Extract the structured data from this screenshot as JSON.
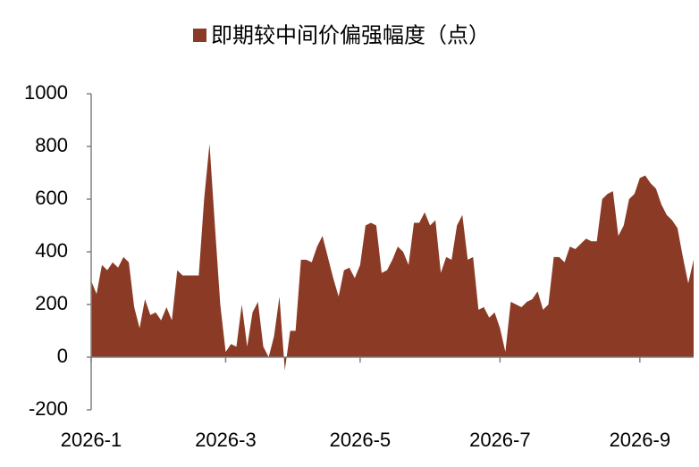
{
  "chart_data": {
    "type": "area",
    "categories": [
      "2026-1",
      null,
      null,
      null,
      null,
      null,
      null,
      null,
      null,
      null,
      null,
      null,
      null,
      null,
      null,
      null,
      null,
      null,
      null,
      null,
      null,
      null,
      null,
      null,
      null,
      "2026-3",
      null,
      null,
      null,
      null,
      null,
      null,
      null,
      null,
      null,
      null,
      null,
      null,
      null,
      null,
      null,
      null,
      null,
      null,
      null,
      null,
      null,
      null,
      null,
      null,
      "2026-5",
      null,
      null,
      null,
      null,
      null,
      null,
      null,
      null,
      null,
      null,
      null,
      null,
      null,
      null,
      null,
      null,
      null,
      null,
      null,
      null,
      null,
      null,
      null,
      null,
      null,
      "2026-7",
      null,
      null,
      null,
      null,
      null,
      null,
      null,
      null,
      null,
      null,
      null,
      null,
      null,
      null,
      null,
      null,
      null,
      null,
      null,
      null,
      null,
      null,
      null,
      null,
      null,
      "2026-9",
      null,
      null,
      null,
      null,
      null,
      null,
      null,
      null,
      null,
      null
    ],
    "series": [
      {
        "name": "即期较中间价偏强幅度（点）",
        "color": "#8b3b25",
        "values": [
          290,
          240,
          350,
          330,
          360,
          340,
          380,
          360,
          190,
          110,
          220,
          160,
          170,
          140,
          190,
          140,
          330,
          310,
          310,
          310,
          310,
          600,
          810,
          500,
          200,
          20,
          50,
          40,
          200,
          40,
          170,
          210,
          40,
          0,
          80,
          230,
          -50,
          100,
          100,
          370,
          370,
          360,
          420,
          460,
          380,
          300,
          230,
          330,
          340,
          300,
          350,
          500,
          510,
          500,
          320,
          330,
          370,
          420,
          400,
          350,
          510,
          510,
          550,
          500,
          520,
          320,
          380,
          370,
          500,
          540,
          370,
          380,
          180,
          190,
          150,
          170,
          110,
          20,
          210,
          200,
          190,
          210,
          220,
          250,
          180,
          200,
          380,
          380,
          360,
          420,
          410,
          430,
          450,
          440,
          440,
          600,
          620,
          630,
          460,
          500,
          600,
          620,
          680,
          690,
          660,
          640,
          580,
          540,
          520,
          490,
          380,
          280,
          370
        ]
      }
    ],
    "ylim": [
      -200,
      1000
    ],
    "yticks": [
      -200,
      0,
      200,
      400,
      600,
      800,
      1000
    ],
    "grid": false
  }
}
